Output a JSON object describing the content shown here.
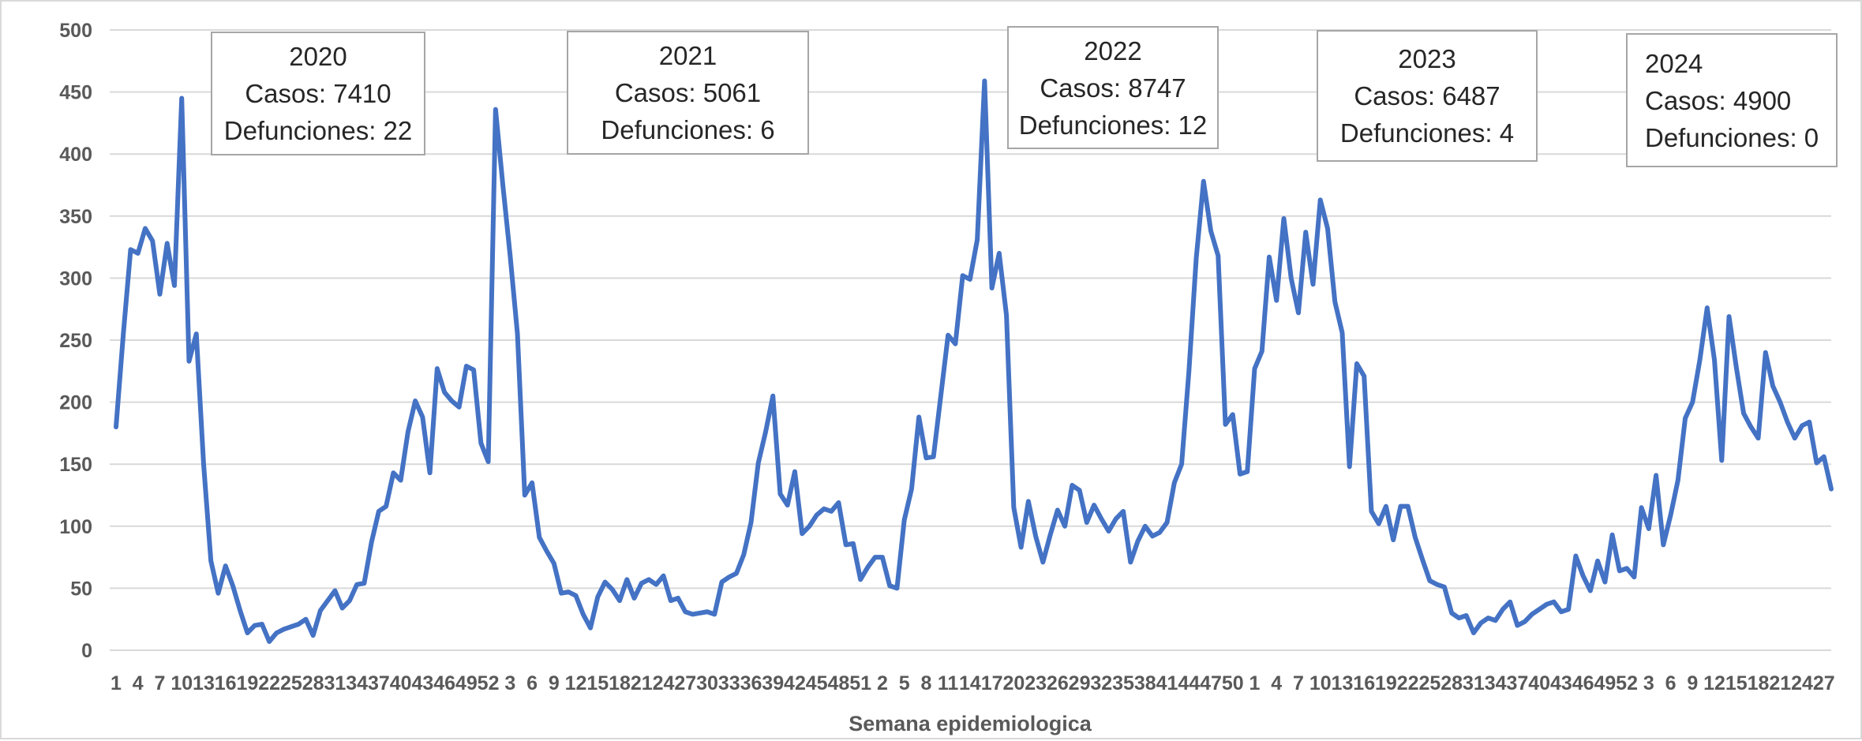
{
  "chart_data": {
    "type": "line",
    "xlabel": "Semana epidemiologica",
    "ylabel": "",
    "ylim": [
      0,
      500
    ],
    "yticks": [
      0,
      50,
      100,
      150,
      200,
      250,
      300,
      350,
      400,
      450,
      500
    ],
    "grid": true,
    "legend": "none",
    "colors": {
      "series": "#4472c4",
      "grid": "#d9d9d9",
      "text": "#595959"
    },
    "x_tick_labels": [
      "1",
      "4",
      "7",
      "10",
      "13",
      "16",
      "19",
      "22",
      "25",
      "28",
      "31",
      "34",
      "37",
      "40",
      "43",
      "46",
      "49",
      "52",
      "3",
      "6",
      "9",
      "12",
      "15",
      "18",
      "21",
      "24",
      "27",
      "30",
      "33",
      "36",
      "39",
      "42",
      "45",
      "48",
      "51",
      "2",
      "5",
      "8",
      "11",
      "14",
      "17",
      "20",
      "23",
      "26",
      "29",
      "32",
      "35",
      "38",
      "41",
      "44",
      "47",
      "50",
      "1",
      "4",
      "7",
      "10",
      "13",
      "16",
      "19",
      "22",
      "25",
      "28",
      "31",
      "34",
      "37",
      "40",
      "43",
      "46",
      "49",
      "52",
      "3",
      "6",
      "9",
      "12",
      "15",
      "18",
      "21",
      "24",
      "27"
    ],
    "annotations": [
      {
        "year": "2020",
        "cases": "Casos: 7410",
        "deaths": "Defunciones: 22"
      },
      {
        "year": "2021",
        "cases": "Casos: 5061",
        "deaths": "Defunciones: 6"
      },
      {
        "year": "2022",
        "cases": "Casos: 8747",
        "deaths": "Defunciones: 12"
      },
      {
        "year": "2023",
        "cases": "Casos: 6487",
        "deaths": "Defunciones: 4"
      },
      {
        "year": "2024",
        "cases": "Casos: 4900",
        "deaths": "Defunciones: 0"
      }
    ],
    "series": [
      {
        "values": [
          180,
          255,
          323,
          320,
          340,
          330,
          287,
          328,
          294,
          445,
          233,
          255,
          150,
          72,
          46,
          68,
          52,
          32,
          14,
          20,
          21,
          7,
          14,
          17,
          19,
          21,
          25,
          12,
          32,
          40,
          48,
          34,
          40,
          53,
          54,
          87,
          112,
          116,
          143,
          137,
          176,
          201,
          188,
          143,
          227,
          208,
          201,
          196,
          229,
          226,
          167,
          152,
          436,
          375,
          318,
          255,
          125,
          135,
          91,
          80,
          70,
          46,
          47,
          44,
          29,
          18,
          43,
          55,
          49,
          40,
          57,
          42,
          54,
          57,
          53,
          60,
          40,
          42,
          31,
          29,
          30,
          31,
          29,
          55,
          59,
          62,
          77,
          103,
          151,
          176,
          205,
          126,
          117,
          144,
          94,
          100,
          109,
          114,
          112,
          119,
          85,
          86,
          57,
          67,
          75,
          75,
          52,
          50,
          105,
          130,
          188,
          155,
          156,
          205,
          254,
          247,
          302,
          299,
          331,
          459,
          292,
          320,
          270,
          115,
          83,
          120,
          92,
          71,
          93,
          113,
          100,
          133,
          129,
          103,
          117,
          106,
          96,
          106,
          112,
          71,
          88,
          100,
          92,
          95,
          103,
          135,
          150,
          225,
          316,
          378,
          338,
          318,
          182,
          190,
          142,
          144,
          227,
          241,
          317,
          282,
          348,
          300,
          272,
          337,
          295,
          363,
          340,
          281,
          256,
          148,
          231,
          221,
          112,
          102,
          116,
          89,
          116,
          116,
          91,
          73,
          56,
          53,
          51,
          30,
          26,
          28,
          14,
          22,
          26,
          24,
          33,
          39,
          20,
          23,
          29,
          33,
          37,
          39,
          31,
          33,
          76,
          60,
          48,
          72,
          55,
          93,
          64,
          66,
          59,
          115,
          98,
          141,
          85,
          109,
          137,
          187,
          200,
          234,
          276,
          234,
          153,
          269,
          228,
          191,
          180,
          171,
          240,
          213,
          200,
          184,
          171,
          181,
          184,
          151,
          156,
          130
        ]
      }
    ]
  }
}
